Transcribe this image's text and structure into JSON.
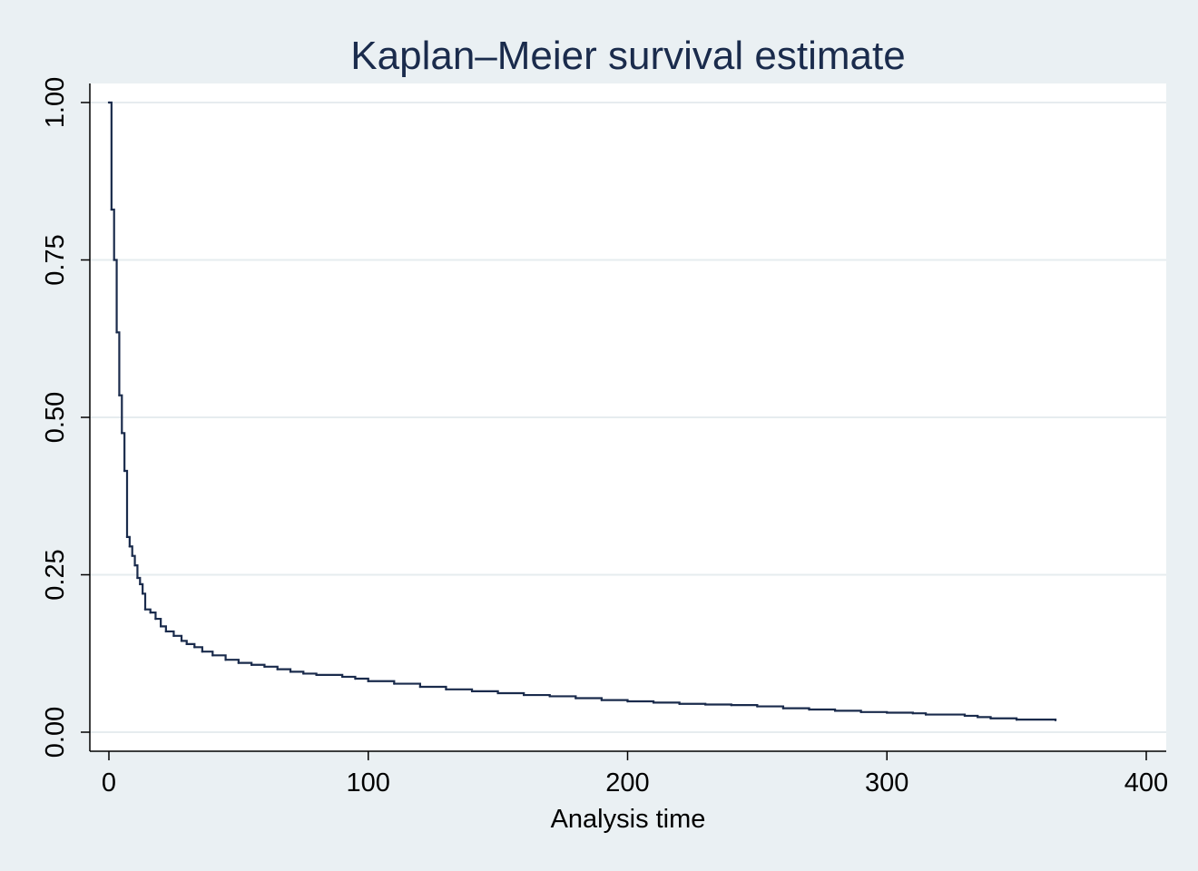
{
  "chart_data": {
    "type": "line",
    "title": "Kaplan–Meier survival estimate",
    "xlabel": "Analysis time",
    "ylabel": "",
    "xlim": [
      0,
      400
    ],
    "ylim": [
      0,
      1
    ],
    "xticks": [
      0,
      100,
      200,
      300,
      400
    ],
    "xtick_labels": [
      "0",
      "100",
      "200",
      "300",
      "400"
    ],
    "yticks": [
      0,
      0.25,
      0.5,
      0.75,
      1
    ],
    "ytick_labels": [
      "0.00",
      "0.25",
      "0.50",
      "0.75",
      "1.00"
    ],
    "grid": true,
    "step": true,
    "series": [
      {
        "color": "#1a2b4c",
        "x": [
          0,
          1,
          2,
          3,
          4,
          5,
          6,
          7,
          8,
          9,
          10,
          11,
          12,
          13,
          14,
          16,
          18,
          20,
          22,
          25,
          28,
          30,
          33,
          36,
          40,
          45,
          50,
          55,
          60,
          65,
          70,
          75,
          80,
          90,
          95,
          100,
          110,
          120,
          130,
          140,
          150,
          160,
          170,
          180,
          190,
          200,
          210,
          220,
          230,
          240,
          250,
          260,
          270,
          280,
          290,
          300,
          310,
          315,
          330,
          335,
          340,
          350,
          365
        ],
        "y": [
          1.0,
          0.83,
          0.75,
          0.635,
          0.535,
          0.475,
          0.415,
          0.31,
          0.295,
          0.28,
          0.265,
          0.245,
          0.235,
          0.22,
          0.195,
          0.19,
          0.18,
          0.168,
          0.16,
          0.153,
          0.145,
          0.14,
          0.135,
          0.128,
          0.122,
          0.115,
          0.11,
          0.107,
          0.104,
          0.1,
          0.096,
          0.093,
          0.091,
          0.088,
          0.085,
          0.081,
          0.077,
          0.072,
          0.068,
          0.065,
          0.062,
          0.059,
          0.057,
          0.054,
          0.051,
          0.049,
          0.047,
          0.045,
          0.044,
          0.043,
          0.041,
          0.038,
          0.036,
          0.034,
          0.032,
          0.031,
          0.03,
          0.028,
          0.026,
          0.024,
          0.022,
          0.02,
          0.019
        ]
      }
    ]
  }
}
